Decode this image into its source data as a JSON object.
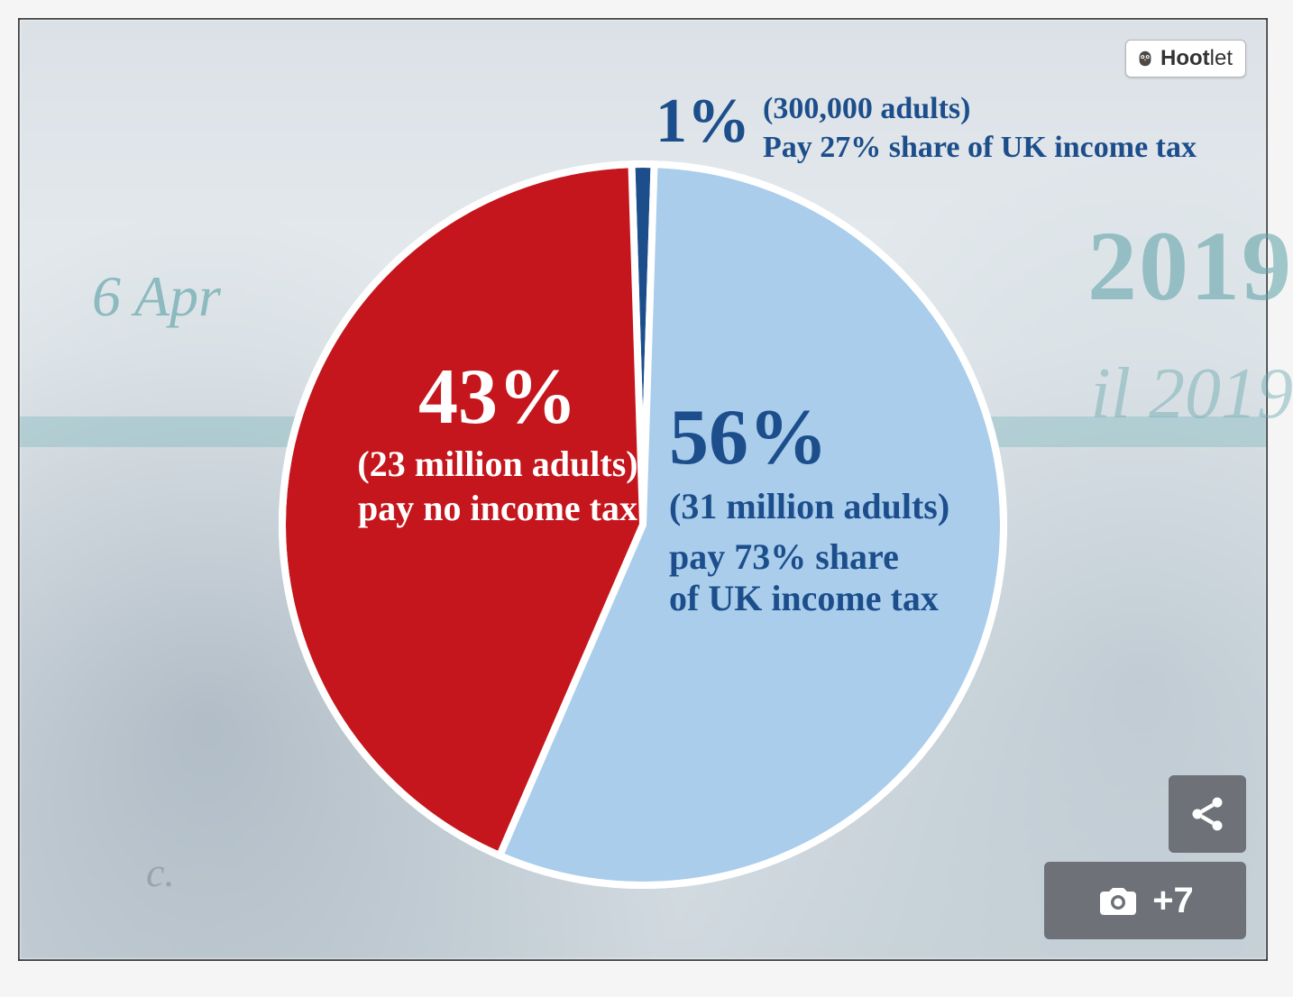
{
  "chart": {
    "type": "pie",
    "radius": 400,
    "stroke_color": "#ffffff",
    "stroke_width": 8,
    "start_angle_deg": -90,
    "slices": [
      {
        "key": "top1",
        "value": 1,
        "color": "#1d4e8c",
        "percent_label": "1%",
        "subtitle": "(300,000 adults)",
        "description": "Pay 27% share of UK income tax",
        "label_color": "#1d4e8c",
        "percent_fontsize": 70,
        "text_fontsize": 34
      },
      {
        "key": "majority",
        "value": 56,
        "color": "#a9cdeb",
        "percent_label": "56%",
        "subtitle": "(31 million adults)",
        "description": "pay 73% share of UK income tax",
        "label_color": "#1d4e8c",
        "percent_fontsize": 88,
        "text_fontsize": 40
      },
      {
        "key": "nonpayers",
        "value": 43,
        "color": "#c4161c",
        "percent_label": "43%",
        "subtitle": "(23 million adults)",
        "description": "pay no income tax",
        "label_color": "#ffffff",
        "percent_fontsize": 88,
        "text_fontsize": 40
      }
    ]
  },
  "background": {
    "text_1": "6 Apr",
    "text_2": "2019",
    "text_3": "il 2019",
    "text_4": "c.",
    "text_color": "#6aa9ad",
    "bar_color": "#6fb2b6"
  },
  "hootlet": {
    "brand_bold": "Hoot",
    "brand_light": "let"
  },
  "overlay": {
    "gallery_count_label": "+7",
    "button_bg": "#6e7278",
    "icon_color": "#ffffff"
  }
}
